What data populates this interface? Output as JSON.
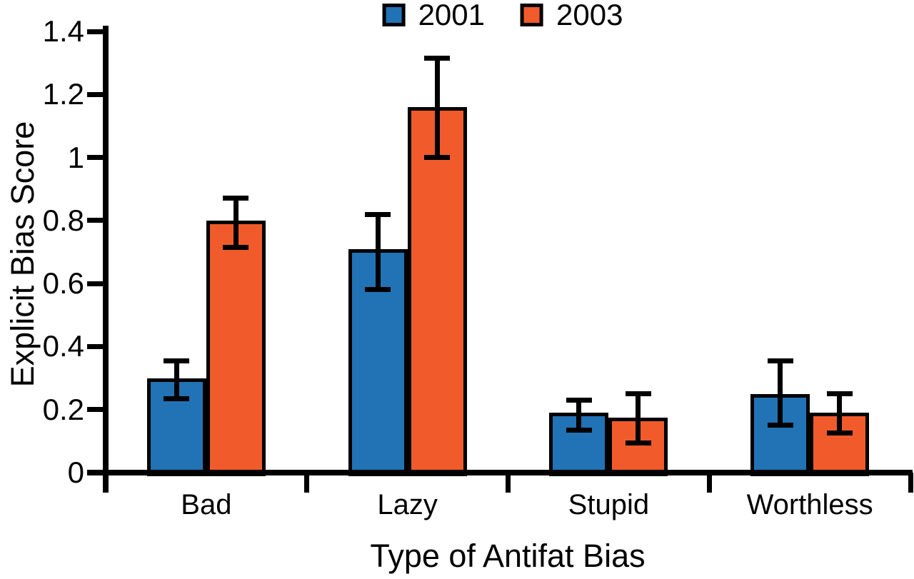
{
  "figure": {
    "background": "#ffffff",
    "axis_color": "#000000"
  },
  "chart_data": {
    "type": "bar",
    "title": "",
    "xlabel": "Type of Antifat Bias",
    "ylabel": "Explicit Bias Score",
    "categories": [
      "Bad",
      "Lazy",
      "Stupid",
      "Worthless"
    ],
    "series": [
      {
        "name": "2001",
        "color": "#2173B5",
        "values": [
          0.3,
          0.71,
          0.19,
          0.25
        ],
        "error_low": [
          0.235,
          0.58,
          0.135,
          0.15
        ],
        "error_high": [
          0.355,
          0.82,
          0.23,
          0.355
        ]
      },
      {
        "name": "2003",
        "color": "#F15B2B",
        "values": [
          0.8,
          1.16,
          0.175,
          0.19
        ],
        "error_low": [
          0.715,
          1.0,
          0.095,
          0.125
        ],
        "error_high": [
          0.87,
          1.315,
          0.25,
          0.25
        ]
      }
    ],
    "ylim": [
      0,
      1.4
    ],
    "yticks": [
      0,
      0.2,
      0.4,
      0.6,
      0.8,
      1,
      1.2,
      1.4
    ],
    "ytick_labels": [
      "0",
      "0.2",
      "0.4",
      "0.6",
      "0.8",
      "1",
      "1.2",
      "1.4"
    ],
    "legend_position": "top-center",
    "grid": false,
    "error_bars": true
  }
}
